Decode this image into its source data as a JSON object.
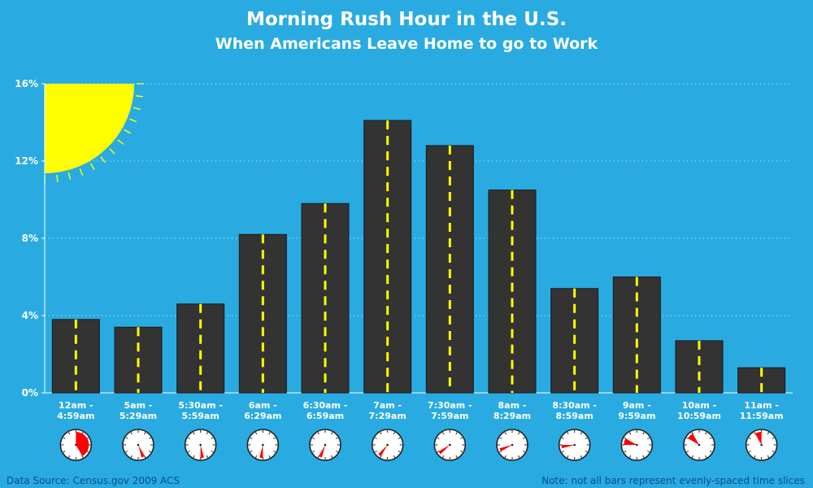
{
  "chart_data": {
    "type": "bar",
    "title": "Morning Rush Hour in the U.S.",
    "subtitle": "When Americans Leave Home to go to Work",
    "ylim": [
      0,
      16
    ],
    "ytick_labels": [
      "0%",
      "4%",
      "8%",
      "12%",
      "16%"
    ],
    "ytick_values": [
      0,
      4,
      8,
      12,
      16
    ],
    "grid": "horizontal dotted",
    "categories": [
      [
        "12am -",
        "4:59am"
      ],
      [
        "5am -",
        "5:29am"
      ],
      [
        "5:30am -",
        "5:59am"
      ],
      [
        "6am -",
        "6:29am"
      ],
      [
        "6:30am -",
        "6:59am"
      ],
      [
        "7am -",
        "7:29am"
      ],
      [
        "7:30am -",
        "7:59am"
      ],
      [
        "8am -",
        "8:29am"
      ],
      [
        "8:30am -",
        "8:59am"
      ],
      [
        "9am -",
        "9:59am"
      ],
      [
        "10am -",
        "10:59am"
      ],
      [
        "11am -",
        "11:59am"
      ]
    ],
    "values": [
      3.8,
      3.4,
      4.6,
      8.2,
      9.8,
      14.1,
      12.8,
      10.5,
      5.4,
      6.0,
      2.7,
      1.3
    ],
    "clock_ranges_minutes": [
      [
        0,
        299
      ],
      [
        300,
        329
      ],
      [
        330,
        359
      ],
      [
        360,
        389
      ],
      [
        390,
        419
      ],
      [
        420,
        449
      ],
      [
        450,
        479
      ],
      [
        480,
        509
      ],
      [
        510,
        539
      ],
      [
        540,
        599
      ],
      [
        600,
        659
      ],
      [
        660,
        719
      ]
    ],
    "colors": {
      "background": "#29abe2",
      "bar": "#333333",
      "lane_marking": "#ffff00",
      "sun": "#ffff00",
      "clock_wedge": "#ff0000",
      "footer_text": "#0b4f86"
    },
    "decoration_icons": [
      "sun-icon",
      "clock-icon",
      "road-bar"
    ]
  },
  "footer": {
    "source": "Data Source: Census.gov 2009 ACS",
    "note": "Note: not all bars represent evenly-spaced time slices"
  }
}
